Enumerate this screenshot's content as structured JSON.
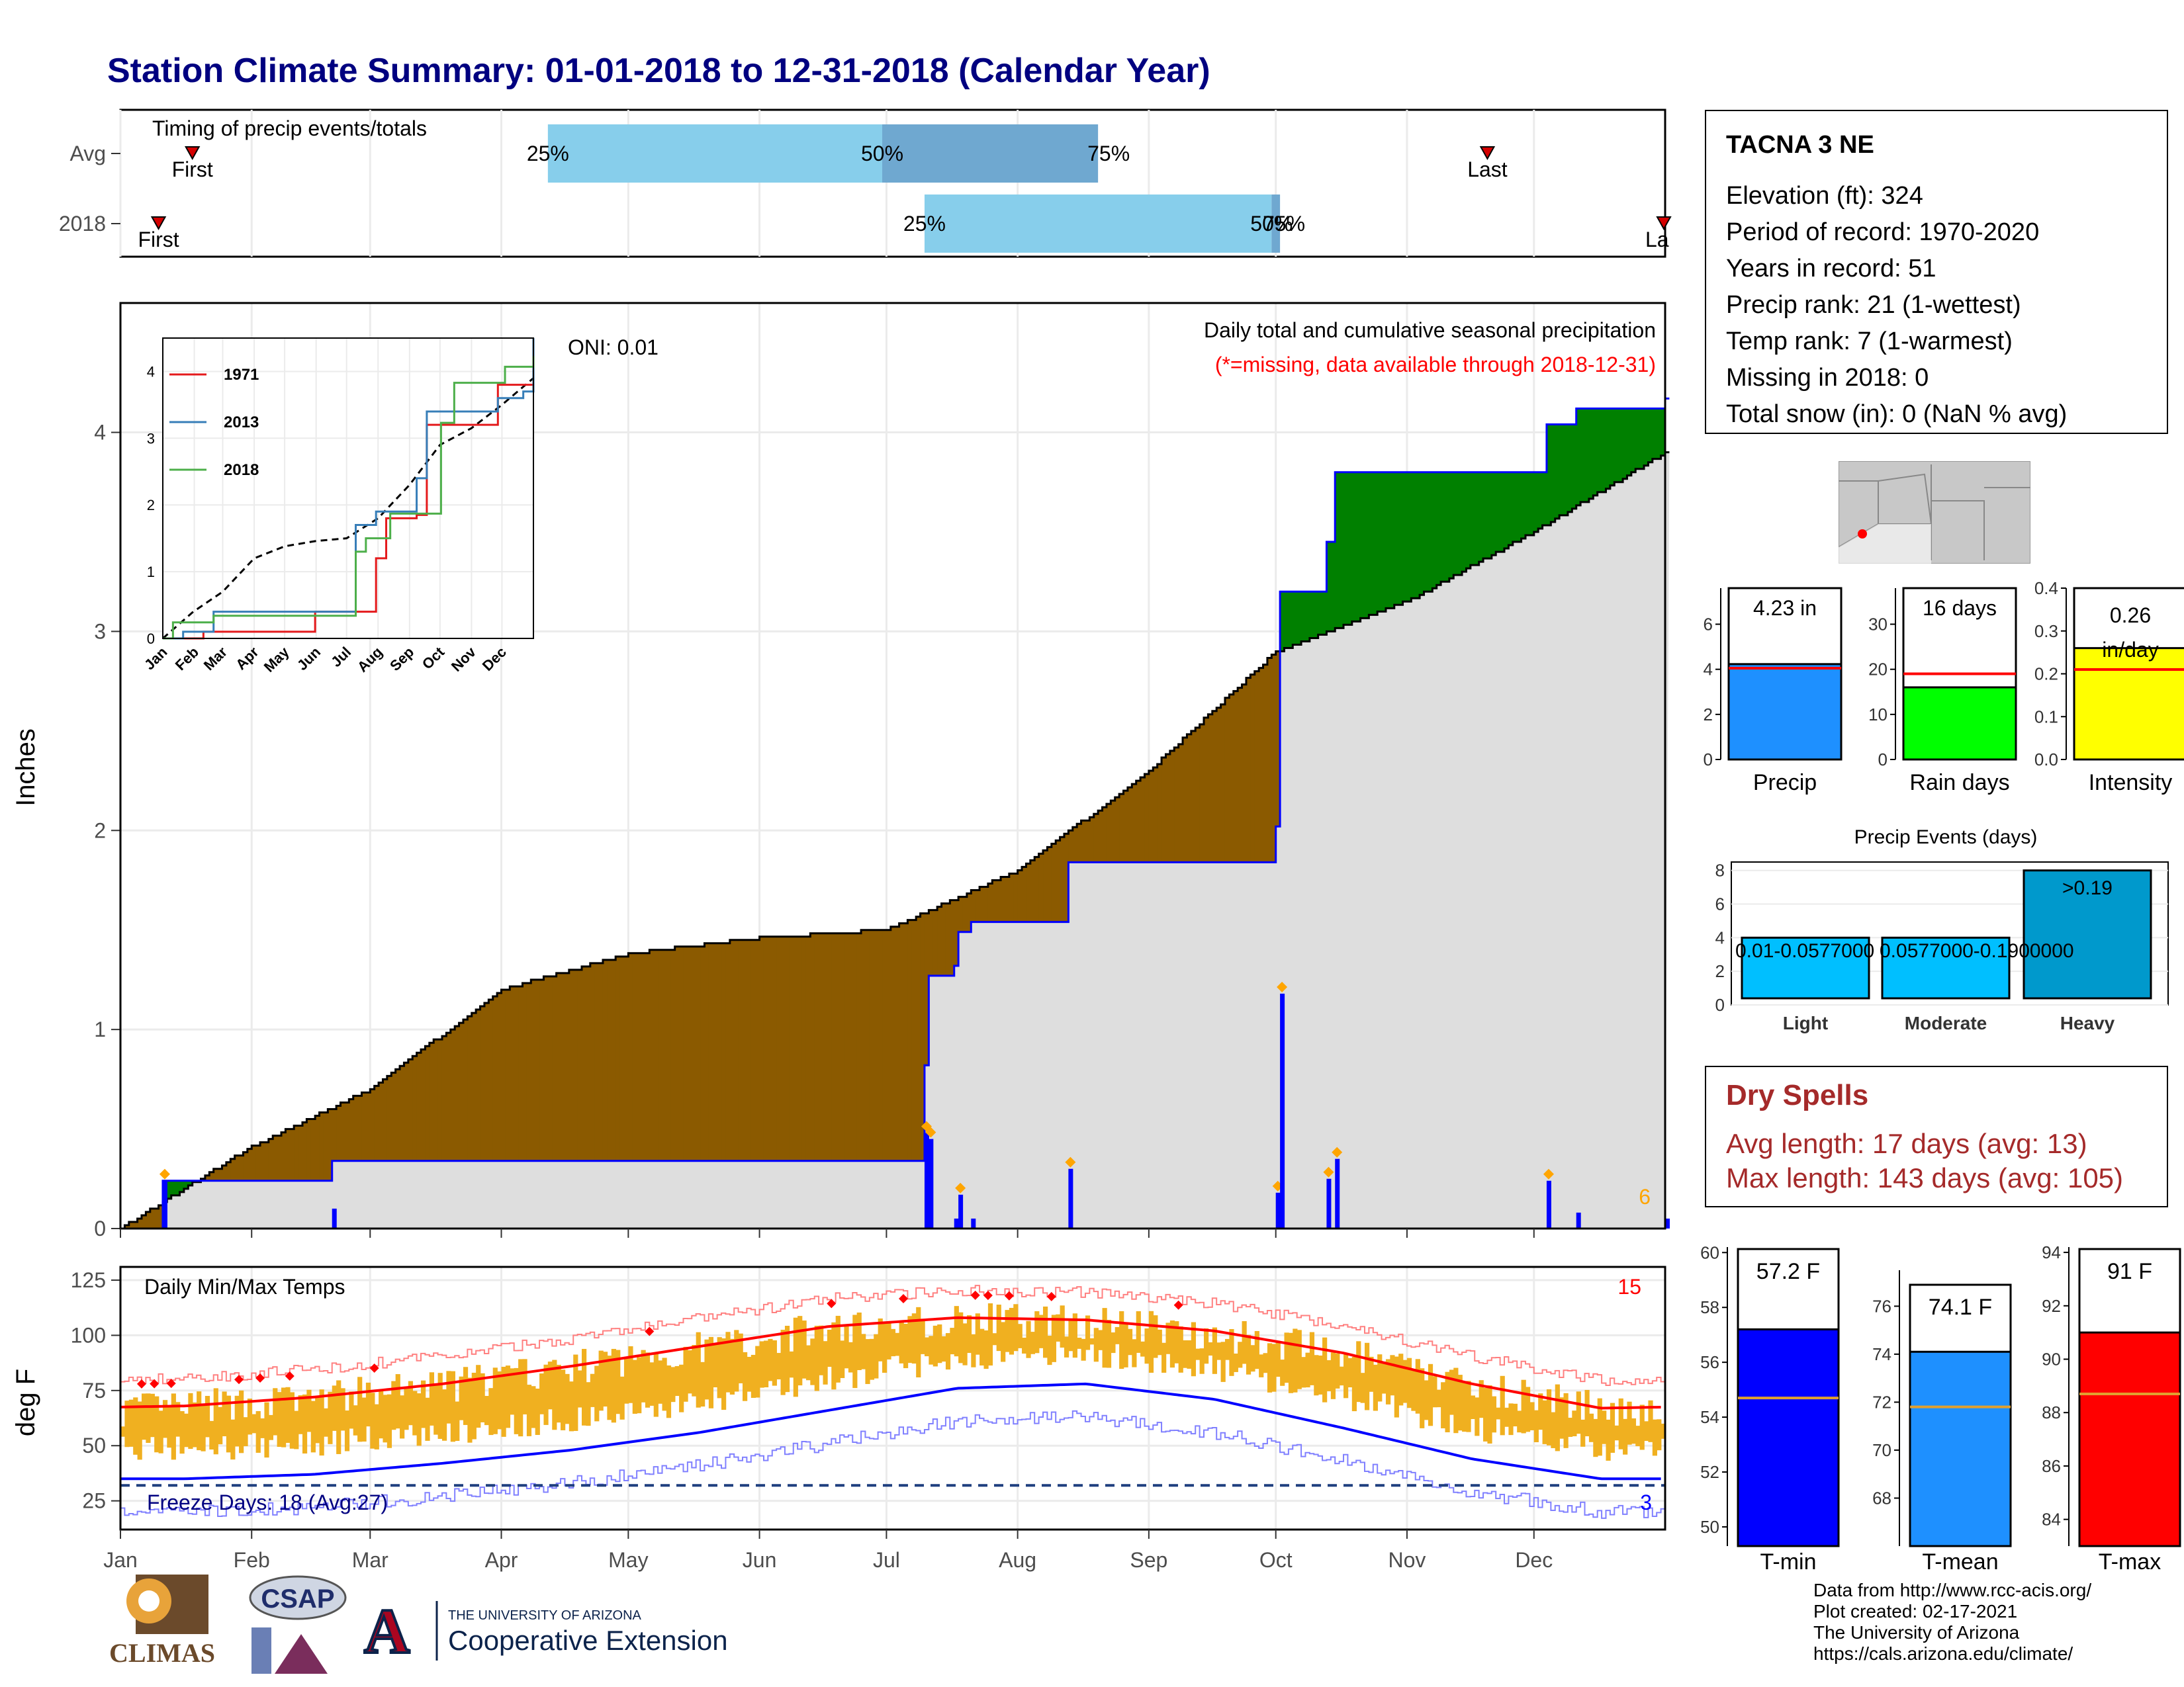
{
  "title": "Station Climate Summary: 01-01-2018 to 12-31-2018 (Calendar Year)",
  "timing": {
    "label": "Timing of precip events/totals",
    "rows": [
      "Avg",
      "2018"
    ],
    "avg": {
      "first": "First",
      "last": "Last",
      "p25": "25%",
      "p50": "50%",
      "p75": "75%"
    },
    "y2018": {
      "first": "First",
      "last": "La",
      "p25": "25%",
      "p50": "50%",
      "p75": "75%"
    }
  },
  "precip_panel": {
    "ylabel": "Inches",
    "oni": "ONI: 0.01",
    "title": "Daily total and cumulative seasonal precipitation",
    "missing_note": "(*=missing, data available through 2018-12-31)",
    "corner_count": "6",
    "yticks": [
      "0",
      "1",
      "2",
      "3",
      "4"
    ]
  },
  "inset": {
    "legend": [
      "1971",
      "2013",
      "2018"
    ],
    "colors": [
      "#e41a1c",
      "#377eb8",
      "#4daf4a"
    ],
    "yticks": [
      "0",
      "1",
      "2",
      "3",
      "4"
    ],
    "xticks": [
      "Jan",
      "Feb",
      "Mar",
      "Apr",
      "May",
      "Jun",
      "Jul",
      "Aug",
      "Sep",
      "Oct",
      "Nov",
      "Dec"
    ]
  },
  "temp_panel": {
    "ylabel": "deg F",
    "title": "Daily Min/Max Temps",
    "hot_count": "15",
    "cold_count": "3",
    "freeze_label": "Freeze Days: 18 (Avg:27)",
    "yticks": [
      "25",
      "50",
      "75",
      "100",
      "125"
    ]
  },
  "months": [
    "Jan",
    "Feb",
    "Mar",
    "Apr",
    "May",
    "Jun",
    "Jul",
    "Aug",
    "Sep",
    "Oct",
    "Nov",
    "Dec"
  ],
  "station": {
    "name": "TACNA 3 NE",
    "lines": [
      "Elevation (ft): 324",
      "Period of record: 1970-2020",
      "Years in record: 51",
      "Precip rank: 21 (1-wettest)",
      "Temp rank: 7 (1-warmest)",
      "Missing in 2018: 0",
      "Total snow (in): 0 (NaN % avg)"
    ]
  },
  "summary_bars": [
    {
      "label": "Precip",
      "value_text": "4.23 in",
      "value": 4.23,
      "avg": 4.05,
      "ymax": 7.6,
      "ticks": [
        "0",
        "2",
        "4",
        "6"
      ],
      "color": "#1e90ff"
    },
    {
      "label": "Rain days",
      "value_text": "16 days",
      "value": 16,
      "avg": 19,
      "ymax": 38,
      "ticks": [
        "0",
        "10",
        "20",
        "30"
      ],
      "color": "#00ff00"
    },
    {
      "label": "Intensity",
      "value_text": "0.26 in/day",
      "value": 0.26,
      "avg": 0.21,
      "ymax": 0.4,
      "ticks": [
        "0.0",
        "0.1",
        "0.2",
        "0.3",
        "0.4"
      ],
      "color": "#ffff00"
    }
  ],
  "events": {
    "title": "Precip Events (days)",
    "categories": [
      "Light",
      "Moderate",
      "Heavy"
    ],
    "values": [
      4,
      4,
      8
    ],
    "labels": [
      "0.01-0.0577000",
      "0.0577000-0.1900000",
      ">0.19"
    ],
    "yticks": [
      "0",
      "2",
      "4",
      "6",
      "8"
    ]
  },
  "dry_spells": {
    "title": "Dry Spells",
    "avg_line": "Avg length: 17 days (avg: 13)",
    "max_line": "Max length: 143 days (avg: 105)"
  },
  "temp_bars": [
    {
      "label": "T-min",
      "value_text": "57.2 F",
      "value": 57.2,
      "avg": 54.7,
      "ylim": [
        49.3,
        60.2
      ],
      "ticks": [
        "50",
        "52",
        "54",
        "56",
        "58",
        "60"
      ],
      "color": "#0000ff"
    },
    {
      "label": "T-mean",
      "value_text": "74.1 F",
      "value": 74.1,
      "avg": 71.8,
      "ylim": [
        66.0,
        77.5
      ],
      "ticks": [
        "68",
        "70",
        "72",
        "74",
        "76"
      ],
      "color": "#1e90ff"
    },
    {
      "label": "T-max",
      "value_text": "91 F",
      "value": 91,
      "avg": 88.7,
      "ylim": [
        83.0,
        94.2
      ],
      "ticks": [
        "84",
        "86",
        "88",
        "90",
        "92",
        "94"
      ],
      "color": "#ff0000"
    }
  ],
  "credits": [
    "Data from http://www.rcc-acis.org/",
    "Plot created: 02-17-2021",
    "The University of Arizona",
    "https://cals.arizona.edu/climate/"
  ],
  "logos": {
    "climas": "CLIMAS",
    "csap": "CSAP",
    "ua_small": "THE UNIVERSITY OF ARIZONA",
    "ua_big": "Cooperative Extension"
  },
  "chart_data": [
    {
      "type": "bar",
      "name": "precip-timing",
      "rows": [
        "Avg",
        "2018"
      ],
      "avg_pct_dates": {
        "25%": "Apr-12",
        "50%": "Jun-30",
        "75%": "Aug-20"
      },
      "y2018_pct_dates": {
        "25%": "Jul-10",
        "50%": "Sep-30",
        "75%": "Oct-02"
      },
      "avg_first_last": {
        "first": "Jan-18",
        "last": "Nov-20"
      },
      "y2018_first_last": {
        "first": "Jan-10",
        "last": "Dec-31"
      }
    },
    {
      "type": "area",
      "name": "cumulative-precip",
      "ylabel": "Inches",
      "ylim": [
        0,
        4.65
      ],
      "daily_events": [
        {
          "doy": 10,
          "in": 0.24
        },
        {
          "doy": 50,
          "in": 0.1
        },
        {
          "doy": 190,
          "in": 0.48
        },
        {
          "doy": 191,
          "in": 0.45
        },
        {
          "doy": 197,
          "in": 0.05
        },
        {
          "doy": 198,
          "in": 0.17
        },
        {
          "doy": 201,
          "in": 0.05
        },
        {
          "doy": 224,
          "in": 0.3
        },
        {
          "doy": 273,
          "in": 0.18
        },
        {
          "doy": 274,
          "in": 1.18
        },
        {
          "doy": 285,
          "in": 0.25
        },
        {
          "doy": 287,
          "in": 0.35
        },
        {
          "doy": 337,
          "in": 0.24
        },
        {
          "doy": 344,
          "in": 0.08
        },
        {
          "doy": 365,
          "in": 0.05
        }
      ],
      "avg_cumulative": [
        {
          "doy": 0,
          "in": 0
        },
        {
          "doy": 30,
          "in": 0.4
        },
        {
          "doy": 59,
          "in": 0.7
        },
        {
          "doy": 90,
          "in": 1.2
        },
        {
          "doy": 120,
          "in": 1.38
        },
        {
          "doy": 151,
          "in": 1.46
        },
        {
          "doy": 181,
          "in": 1.5
        },
        {
          "doy": 212,
          "in": 1.8
        },
        {
          "doy": 243,
          "in": 2.3
        },
        {
          "doy": 273,
          "in": 2.9
        },
        {
          "doy": 304,
          "in": 3.15
        },
        {
          "doy": 334,
          "in": 3.5
        },
        {
          "doy": 365,
          "in": 3.9
        }
      ]
    },
    {
      "type": "line",
      "name": "inset-cumulative",
      "series": [
        {
          "name": "1971",
          "points": [
            [
              0,
              0
            ],
            [
              40,
              0.1
            ],
            [
              150,
              0.4
            ],
            [
              200,
              0.4
            ],
            [
              210,
              1.2
            ],
            [
              220,
              1.8
            ],
            [
              250,
              1.85
            ],
            [
              260,
              3.2
            ],
            [
              300,
              3.2
            ],
            [
              330,
              3.8
            ],
            [
              365,
              4.2
            ]
          ]
        },
        {
          "name": "2013",
          "points": [
            [
              0,
              0
            ],
            [
              20,
              0.1
            ],
            [
              50,
              0.4
            ],
            [
              180,
              0.4
            ],
            [
              190,
              1.7
            ],
            [
              210,
              1.9
            ],
            [
              250,
              2.4
            ],
            [
              260,
              3.4
            ],
            [
              300,
              3.4
            ],
            [
              330,
              3.6
            ],
            [
              355,
              3.7
            ],
            [
              365,
              4.5
            ]
          ]
        },
        {
          "name": "2018",
          "points": [
            [
              0,
              0
            ],
            [
              10,
              0.24
            ],
            [
              50,
              0.34
            ],
            [
              190,
              1.3
            ],
            [
              200,
              1.5
            ],
            [
              224,
              1.87
            ],
            [
              274,
              3.23
            ],
            [
              287,
              3.83
            ],
            [
              337,
              4.07
            ],
            [
              365,
              4.23
            ]
          ]
        }
      ]
    },
    {
      "type": "line",
      "name": "daily-temps",
      "ylabel": "deg F",
      "ylim": [
        12,
        131
      ],
      "normal_max_monthly": [
        68,
        72,
        78,
        86,
        95,
        104,
        108,
        107,
        102,
        92,
        78,
        67
      ],
      "normal_min_monthly": [
        35,
        37,
        42,
        48,
        56,
        66,
        76,
        78,
        71,
        58,
        44,
        35
      ],
      "freeze_line": 32
    }
  ]
}
